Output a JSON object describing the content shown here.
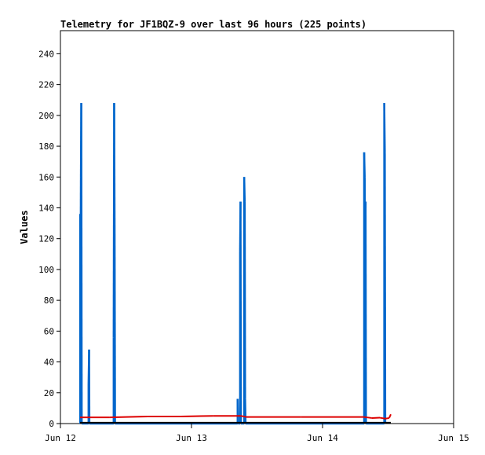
{
  "chart_data": {
    "type": "line",
    "title": "Telemetry for JF1BQZ-9 over last 96 hours (225 points)",
    "ylabel": "Values",
    "xlabel": "",
    "ylim": [
      0,
      255
    ],
    "xlim": [
      0,
      72
    ],
    "y_ticks": [
      0,
      20,
      40,
      60,
      80,
      100,
      120,
      140,
      160,
      180,
      200,
      220,
      240
    ],
    "x_ticks": [
      {
        "value": 0,
        "label": "Jun 12"
      },
      {
        "value": 24,
        "label": "Jun 13"
      },
      {
        "value": 48,
        "label": "Jun 14"
      },
      {
        "value": 72,
        "label": "Jun 15"
      }
    ],
    "grid": false,
    "series": [
      {
        "color": "#0066cc",
        "style": "spikes",
        "points": [
          [
            3.62,
            0
          ],
          [
            3.62,
            136
          ],
          [
            3.7,
            112
          ],
          [
            3.75,
            160
          ],
          [
            3.82,
            208
          ],
          [
            3.9,
            0
          ],
          [
            5.15,
            0
          ],
          [
            5.15,
            25
          ],
          [
            5.25,
            48
          ],
          [
            5.3,
            0
          ],
          [
            9.75,
            0
          ],
          [
            9.75,
            56
          ],
          [
            9.84,
            208
          ],
          [
            9.92,
            128
          ],
          [
            10.0,
            0
          ],
          [
            32.45,
            0
          ],
          [
            32.45,
            16
          ],
          [
            32.55,
            0
          ],
          [
            32.9,
            0
          ],
          [
            32.9,
            112
          ],
          [
            32.98,
            144
          ],
          [
            33.05,
            0
          ],
          [
            33.65,
            0
          ],
          [
            33.65,
            160
          ],
          [
            33.75,
            144
          ],
          [
            33.82,
            16
          ],
          [
            33.9,
            0
          ],
          [
            55.62,
            0
          ],
          [
            55.62,
            176
          ],
          [
            55.72,
            160
          ],
          [
            55.8,
            108
          ],
          [
            55.88,
            144
          ],
          [
            55.95,
            0
          ],
          [
            59.3,
            0
          ],
          [
            59.3,
            208
          ],
          [
            59.4,
            176
          ],
          [
            59.48,
            0
          ]
        ]
      },
      {
        "color": "#dd0000",
        "style": "line",
        "points": [
          [
            3.6,
            4.0
          ],
          [
            9.0,
            4.0
          ],
          [
            12.0,
            4.3
          ],
          [
            16.0,
            4.6
          ],
          [
            22.0,
            4.6
          ],
          [
            28.0,
            5.0
          ],
          [
            33.0,
            5.0
          ],
          [
            34.0,
            4.3
          ],
          [
            44.0,
            4.3
          ],
          [
            55.5,
            4.3
          ],
          [
            57.0,
            3.6
          ],
          [
            58.5,
            3.8
          ],
          [
            59.5,
            3.2
          ],
          [
            60.2,
            3.6
          ],
          [
            60.5,
            6.0
          ]
        ]
      },
      {
        "color": "#000000",
        "style": "line",
        "points": [
          [
            3.6,
            0.6
          ],
          [
            60.5,
            0.6
          ]
        ]
      }
    ]
  }
}
